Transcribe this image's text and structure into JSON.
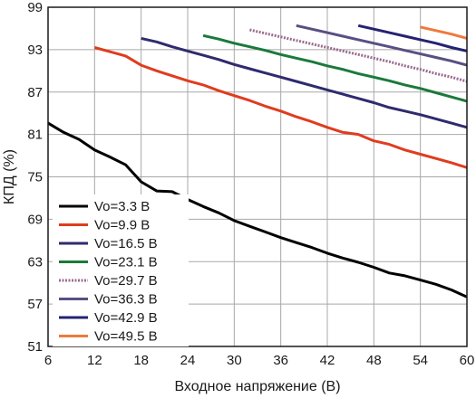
{
  "chart_data": {
    "type": "line",
    "xlabel": "Входное напряжение (В)",
    "ylabel": "КПД (%)",
    "xlim": [
      6,
      60
    ],
    "ylim": [
      51,
      99
    ],
    "xticks": [
      6,
      12,
      18,
      24,
      30,
      36,
      42,
      48,
      54,
      60
    ],
    "yticks": [
      51,
      57,
      63,
      69,
      75,
      81,
      87,
      93,
      99
    ],
    "grid": true,
    "legend_position": "bottom-left",
    "series": [
      {
        "name": "Vo=3.3 В",
        "color": "#000000",
        "style": "solid",
        "x": [
          6,
          8,
          10,
          12,
          14,
          16,
          18,
          20,
          22,
          24,
          26,
          28,
          30,
          32,
          34,
          36,
          38,
          40,
          42,
          44,
          46,
          48,
          50,
          52,
          54,
          56,
          58,
          60
        ],
        "y": [
          82.6,
          81.3,
          80.3,
          78.8,
          77.8,
          76.7,
          74.3,
          73.0,
          72.9,
          71.8,
          70.8,
          69.9,
          68.8,
          68.0,
          67.2,
          66.4,
          65.7,
          65.0,
          64.2,
          63.5,
          62.9,
          62.2,
          61.4,
          61.0,
          60.4,
          59.8,
          59.0,
          58.0
        ]
      },
      {
        "name": "Vo=9.9 В",
        "color": "#e03c1e",
        "style": "solid",
        "x": [
          12,
          14,
          16,
          18,
          20,
          22,
          24,
          26,
          28,
          30,
          32,
          34,
          36,
          38,
          40,
          42,
          44,
          46,
          48,
          50,
          52,
          54,
          56,
          58,
          60
        ],
        "y": [
          93.3,
          92.7,
          92.1,
          90.8,
          90.0,
          89.3,
          88.6,
          88.0,
          87.2,
          86.5,
          85.8,
          85.0,
          84.3,
          83.5,
          82.8,
          82.0,
          81.3,
          81.0,
          80.1,
          79.6,
          78.8,
          78.2,
          77.6,
          77.0,
          76.3
        ]
      },
      {
        "name": "Vo=16.5 В",
        "color": "#2e2b6e",
        "style": "solid",
        "x": [
          18,
          20,
          22,
          24,
          26,
          28,
          30,
          32,
          34,
          36,
          38,
          40,
          42,
          44,
          46,
          48,
          50,
          52,
          54,
          56,
          58,
          60
        ],
        "y": [
          94.6,
          94.1,
          93.4,
          92.8,
          92.2,
          91.6,
          90.9,
          90.3,
          89.7,
          89.1,
          88.5,
          87.9,
          87.3,
          86.7,
          86.1,
          85.5,
          84.8,
          84.3,
          83.8,
          83.2,
          82.6,
          82.0
        ]
      },
      {
        "name": "Vo=23.1 В",
        "color": "#1a7a3a",
        "style": "solid",
        "x": [
          26,
          28,
          30,
          32,
          34,
          36,
          38,
          40,
          42,
          44,
          46,
          48,
          50,
          52,
          54,
          56,
          58,
          60
        ],
        "y": [
          95.0,
          94.5,
          93.9,
          93.4,
          92.9,
          92.3,
          91.8,
          91.3,
          90.7,
          90.2,
          89.6,
          89.1,
          88.6,
          88.0,
          87.5,
          86.9,
          86.3,
          85.7
        ]
      },
      {
        "name": "Vo=29.7 В",
        "color": "#9b6a8e",
        "style": "dotted",
        "x": [
          32,
          34,
          36,
          38,
          40,
          42,
          44,
          46,
          48,
          50,
          52,
          54,
          56,
          58,
          60
        ],
        "y": [
          95.8,
          95.3,
          94.8,
          94.3,
          93.8,
          93.3,
          92.8,
          92.3,
          91.8,
          91.3,
          90.7,
          90.2,
          89.6,
          89.1,
          88.5
        ]
      },
      {
        "name": "Vo=36.3 В",
        "color": "#5a4f82",
        "style": "solid",
        "x": [
          38,
          40,
          42,
          44,
          46,
          48,
          50,
          52,
          54,
          56,
          58,
          60
        ],
        "y": [
          96.4,
          95.9,
          95.4,
          94.9,
          94.4,
          93.9,
          93.4,
          92.9,
          92.4,
          91.9,
          91.4,
          90.8
        ]
      },
      {
        "name": "Vo=42.9 В",
        "color": "#252370",
        "style": "solid",
        "x": [
          46,
          48,
          50,
          52,
          54,
          56,
          58,
          60
        ],
        "y": [
          96.4,
          95.9,
          95.4,
          94.9,
          94.4,
          93.9,
          93.3,
          92.8
        ]
      },
      {
        "name": "Vo=49.5 В",
        "color": "#ee7a3a",
        "style": "solid",
        "x": [
          54,
          56,
          58,
          60
        ],
        "y": [
          96.2,
          95.7,
          95.2,
          94.6
        ]
      }
    ]
  }
}
